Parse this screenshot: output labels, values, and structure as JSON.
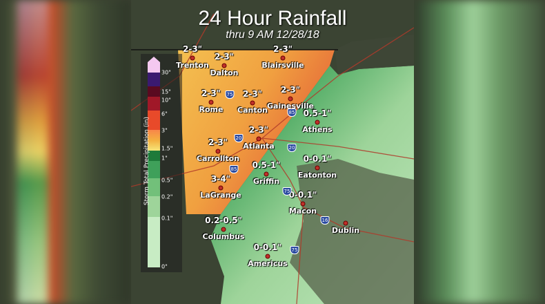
{
  "title": "24 Hour Rainfall",
  "subtitle": "thru 9 AM 12/28/18",
  "legend": {
    "title": "Storm Total Precipitation (in)",
    "ticks": [
      "30\"",
      "15\"",
      "10\"",
      "6\"",
      "3\"",
      "1.5\"",
      "1\"",
      "0.5\"",
      "0.2\"",
      "0.1\"",
      "0\""
    ],
    "colors": {
      "30+": "#f4c8f0",
      "15-30": "#3a1a70",
      "10-15": "#5a0a20",
      "6-10": "#a01828",
      "3-6": "#e84a2a",
      "1.5-3": "#f4b040",
      "1-1.5": "#1e7a3a",
      "0.5-1": "#3fa05a",
      "0.2-0.5": "#72c07a",
      "0.1-0.2": "#9ed49a",
      "0-0.1": "#c8ecc4"
    }
  },
  "cities": [
    {
      "name": "Trenton",
      "amount": "2-3\""
    },
    {
      "name": "Dalton",
      "amount": "2-3\""
    },
    {
      "name": "Blairsville",
      "amount": "2-3\""
    },
    {
      "name": "Rome",
      "amount": "2-3\""
    },
    {
      "name": "Canton",
      "amount": "2-3\""
    },
    {
      "name": "Gainesville",
      "amount": "2-3\""
    },
    {
      "name": "Athens",
      "amount": "0.5-1\""
    },
    {
      "name": "Atlanta",
      "amount": "2-3\""
    },
    {
      "name": "Carrollton",
      "amount": "2-3\""
    },
    {
      "name": "Eatonton",
      "amount": "0-0.1\""
    },
    {
      "name": "Griffin",
      "amount": "0.5-1\""
    },
    {
      "name": "LaGrange",
      "amount": "3-4\""
    },
    {
      "name": "Macon",
      "amount": "0-0.1\""
    },
    {
      "name": "Dublin",
      "amount": ""
    },
    {
      "name": "Columbus",
      "amount": "0.2-0.5\""
    },
    {
      "name": "Americus",
      "amount": "0-0.1\""
    }
  ],
  "interstates": [
    "75",
    "85",
    "20",
    "20",
    "85",
    "75",
    "16",
    "75"
  ]
}
